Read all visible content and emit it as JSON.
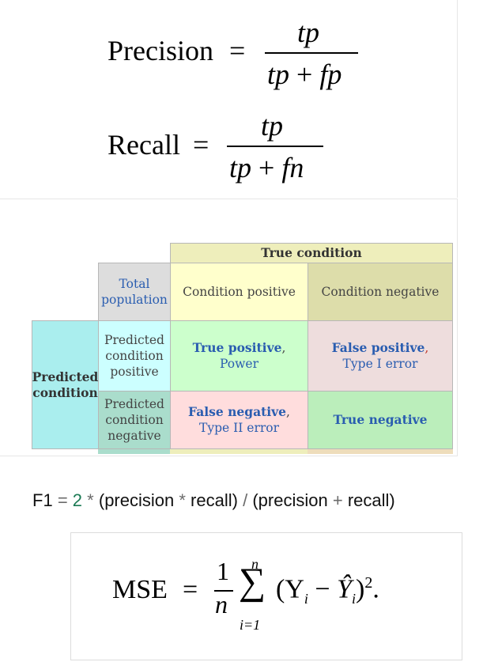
{
  "precision": {
    "lhs": "Precision",
    "eq": "=",
    "numerator": "tp",
    "denominator": {
      "a": "tp",
      "plus": "+",
      "b": "fp"
    }
  },
  "recall": {
    "lhs": "Recall",
    "eq": "=",
    "numerator": "tp",
    "denominator": {
      "a": "tp",
      "plus": "+",
      "b": "fn"
    }
  },
  "confusion_matrix": {
    "true_condition": "True condition",
    "total_population": "Total population",
    "condition_positive": "Condition positive",
    "condition_negative": "Condition negative",
    "predicted_condition": "Predicted condition",
    "predicted_positive": "Predicted condition positive",
    "predicted_negative": "Predicted condition negative",
    "true_positive": "True positive",
    "true_positive_alt": "Power",
    "false_positive": "False positive",
    "false_positive_alt": "Type I error",
    "false_negative": "False negative",
    "false_negative_alt": "Type II error",
    "true_negative": "True negative",
    "comma": ","
  },
  "f1": {
    "lhs": "F1",
    "eq": "=",
    "coef": "2",
    "mul": "*",
    "open": "(",
    "precision": "precision",
    "recall": "recall",
    "close": ")",
    "div": "/",
    "plus": "+"
  },
  "mse": {
    "lhs": "MSE",
    "eq": "=",
    "frac_num": "1",
    "frac_den": "n",
    "sigma": "∑",
    "upper": "n",
    "lower": "i=1",
    "term": "(Y",
    "sub_i": "i",
    "minus": "−",
    "yhat": "Ŷ",
    "sub_i2": "i",
    "close": ")",
    "power": "2",
    "period": "."
  },
  "colors": {
    "header_yellow": "#eeeebb",
    "total_gray": "#dddddd",
    "cond_neg_khaki": "#ddddaa",
    "pred_cyan": "#aaeeee",
    "pred_light_cyan": "#ccffff",
    "tp_green": "#ccffcc",
    "fp_pink": "#eedddd",
    "fn_pink": "#ffdddd",
    "tn_green": "#bbeebb",
    "link_blue": "#2a5db0",
    "f1_green": "#1b7a54"
  }
}
